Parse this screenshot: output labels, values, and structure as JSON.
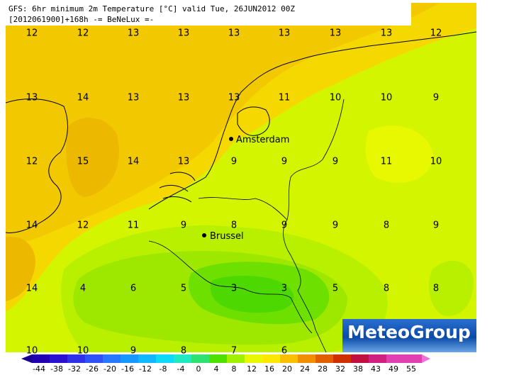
{
  "header": {
    "line1": "GFS: 6hr minimum 2m Temperature [°C] valid Tue, 26JUN2012 00Z",
    "line2": "[2012061900]+168h -= BeNeLux =-"
  },
  "grid": {
    "rows": [
      [
        12,
        12,
        13,
        13,
        13,
        13,
        13,
        13,
        12
      ],
      [
        13,
        14,
        13,
        13,
        13,
        11,
        10,
        10,
        9
      ],
      [
        12,
        15,
        14,
        13,
        9,
        9,
        9,
        11,
        10
      ],
      [
        14,
        12,
        11,
        9,
        8,
        9,
        9,
        8,
        9
      ],
      [
        14,
        4,
        6,
        5,
        3,
        3,
        5,
        8,
        8
      ],
      [
        10,
        10,
        9,
        8,
        7,
        6
      ]
    ]
  },
  "cities": [
    {
      "label": "Amsterdam"
    },
    {
      "label": "Brussel"
    }
  ],
  "logo": "MeteoGroup",
  "colorbar": {
    "labels": [
      -44,
      -38,
      -32,
      -26,
      -20,
      -16,
      -12,
      -8,
      -4,
      0,
      4,
      8,
      12,
      16,
      20,
      24,
      28,
      32,
      38,
      43,
      49,
      55
    ]
  }
}
